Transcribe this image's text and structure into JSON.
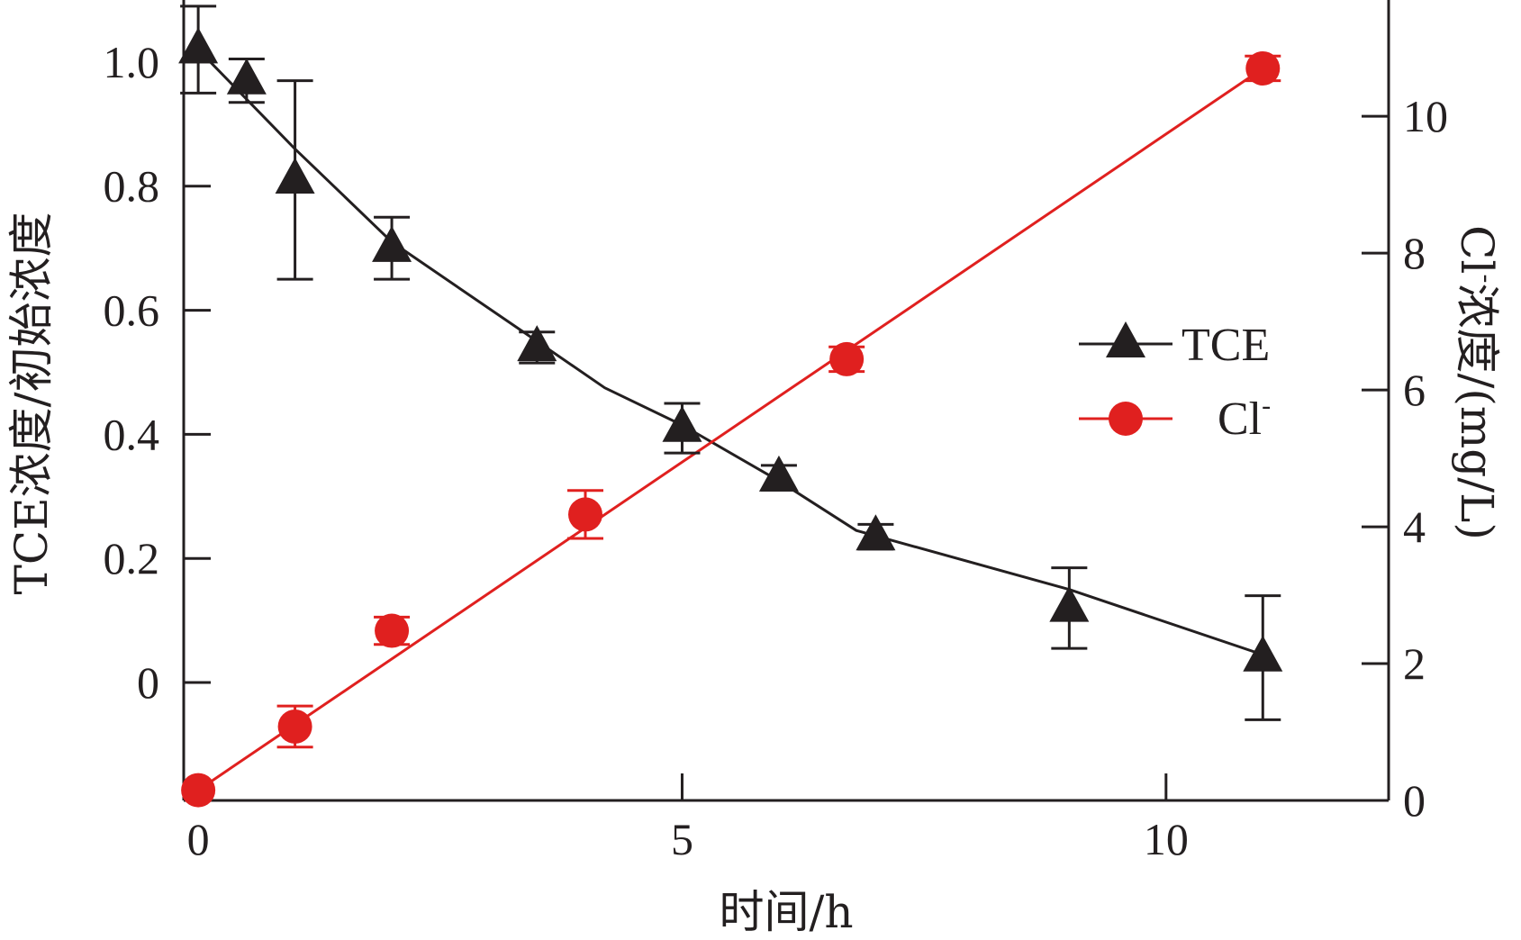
{
  "chart_data": {
    "type": "line",
    "xlabel": "时间/h",
    "ylabel_left": "TCE浓度/初始浓度",
    "ylabel_right_prefix": "Cl",
    "ylabel_right_sup": "-",
    "ylabel_right_suffix": "浓度/(mg/L)",
    "xlim": [
      -0.15,
      12.3
    ],
    "ylim_left": [
      -0.19,
      1.1
    ],
    "ylim_right": [
      0,
      11.7
    ],
    "x_ticks": [
      0,
      5,
      10
    ],
    "y_left_ticks": [
      0,
      0.2,
      0.4,
      0.6,
      0.8,
      1.0
    ],
    "y_left_tick_labels": [
      "0",
      "0.2",
      "0.4",
      "0.6",
      "0.8",
      "1.0"
    ],
    "y_right_ticks": [
      0,
      2,
      4,
      6,
      8,
      10
    ],
    "grid": false,
    "legend_position": "right-middle",
    "series": [
      {
        "name": "TCE",
        "axis": "left",
        "color": "#231f20",
        "marker": "triangle",
        "x": [
          0,
          0.5,
          1,
          2,
          3.5,
          5,
          6,
          7,
          9,
          11
        ],
        "y": [
          1.02,
          0.97,
          0.81,
          0.7,
          0.54,
          0.41,
          0.33,
          0.235,
          0.12,
          0.04
        ],
        "err": [
          0.07,
          0.035,
          0.16,
          0.05,
          0.025,
          0.04,
          0.02,
          0.02,
          0.065,
          0.1
        ],
        "line_x": [
          0,
          1,
          2,
          3.5,
          4.2,
          5,
          6,
          6.8,
          9,
          11
        ],
        "line_y": [
          1.02,
          0.86,
          0.71,
          0.55,
          0.475,
          0.415,
          0.325,
          0.245,
          0.15,
          0.045
        ]
      },
      {
        "name": "Cl",
        "name_sup": "-",
        "axis": "right",
        "color": "#e0201f",
        "marker": "circle",
        "x": [
          0,
          1,
          2,
          4,
          6.7,
          11
        ],
        "y": [
          0.15,
          1.08,
          2.48,
          4.18,
          6.45,
          10.7
        ],
        "err": [
          0,
          0.3,
          0.2,
          0.35,
          0.18,
          0.18
        ],
        "line_x": [
          0,
          11
        ],
        "line_y": [
          0.15,
          10.7
        ]
      }
    ]
  }
}
